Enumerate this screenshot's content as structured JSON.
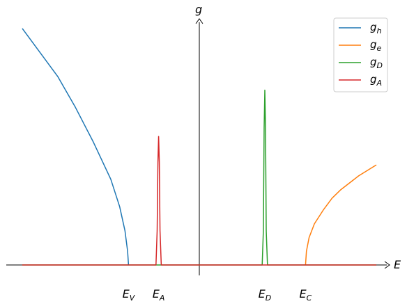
{
  "chart_data": {
    "type": "line",
    "title": "",
    "xlabel": "E",
    "ylabel": "g",
    "xlim": [
      -10.5,
      10.5
    ],
    "ylim": [
      -0.3,
      7.5
    ],
    "ticks": [
      {
        "label": "E_V",
        "main": "E",
        "sub": "V",
        "x": -4.0
      },
      {
        "label": "E_A",
        "main": "E",
        "sub": "A",
        "x": -2.3
      },
      {
        "label": "E_D",
        "main": "E",
        "sub": "D",
        "x": 3.7
      },
      {
        "label": "E_C",
        "main": "E",
        "sub": "C",
        "x": 6.0
      }
    ],
    "series": [
      {
        "name": "g_h",
        "main": "g",
        "sub": "h",
        "color": "#1f77b4",
        "x": [
          -10.0,
          -9.0,
          -8.0,
          -7.0,
          -6.0,
          -5.0,
          -4.5,
          -4.2,
          -4.05,
          -4.0
        ],
        "y": [
          6.9,
          6.2,
          5.5,
          4.6,
          3.6,
          2.5,
          1.7,
          1.0,
          0.4,
          0.0
        ]
      },
      {
        "name": "g_e",
        "main": "g",
        "sub": "e",
        "color": "#ff7f0e",
        "x": [
          6.0,
          6.05,
          6.2,
          6.5,
          7.0,
          7.5,
          8.0,
          9.0,
          10.0
        ],
        "y": [
          0.0,
          0.4,
          0.8,
          1.2,
          1.6,
          1.95,
          2.2,
          2.6,
          2.92
        ]
      },
      {
        "name": "g_D",
        "main": "g",
        "sub": "D",
        "color": "#2ca02c",
        "x": [
          -10.0,
          3.55,
          3.62,
          3.66,
          3.7,
          3.74,
          3.78,
          3.85,
          10.0
        ],
        "y": [
          0.0,
          0.0,
          1.0,
          4.0,
          5.1,
          4.0,
          1.0,
          0.0,
          0.0
        ]
      },
      {
        "name": "g_A",
        "main": "g",
        "sub": "A",
        "color": "#d62728",
        "x": [
          -10.0,
          -2.45,
          -2.38,
          -2.34,
          -2.3,
          -2.26,
          -2.22,
          -2.15,
          10.0
        ],
        "y": [
          0.0,
          0.0,
          1.0,
          3.0,
          3.75,
          3.0,
          1.0,
          0.0,
          0.0
        ]
      }
    ],
    "legend_position": "top-right",
    "grid": false
  }
}
